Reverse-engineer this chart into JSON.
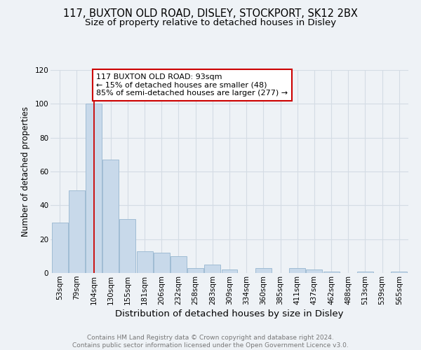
{
  "title": "117, BUXTON OLD ROAD, DISLEY, STOCKPORT, SK12 2BX",
  "subtitle": "Size of property relative to detached houses in Disley",
  "xlabel": "Distribution of detached houses by size in Disley",
  "ylabel_clean": "Number of detached properties",
  "categories": [
    "53sqm",
    "79sqm",
    "104sqm",
    "130sqm",
    "155sqm",
    "181sqm",
    "206sqm",
    "232sqm",
    "258sqm",
    "283sqm",
    "309sqm",
    "334sqm",
    "360sqm",
    "385sqm",
    "411sqm",
    "437sqm",
    "462sqm",
    "488sqm",
    "513sqm",
    "539sqm",
    "565sqm"
  ],
  "values": [
    30,
    49,
    100,
    67,
    32,
    13,
    12,
    10,
    3,
    5,
    2,
    0,
    3,
    0,
    3,
    2,
    1,
    0,
    1,
    0,
    1
  ],
  "bar_color": "#c8d9ea",
  "bar_edge_color": "#a0bcd4",
  "vline_x": 2,
  "vline_color": "#cc0000",
  "annotation_text": "117 BUXTON OLD ROAD: 93sqm\n← 15% of detached houses are smaller (48)\n85% of semi-detached houses are larger (277) →",
  "annotation_box_color": "#ffffff",
  "annotation_box_edge_color": "#cc0000",
  "ylim": [
    0,
    120
  ],
  "yticks": [
    0,
    20,
    40,
    60,
    80,
    100,
    120
  ],
  "grid_color": "#d4dce4",
  "background_color": "#eef2f6",
  "footer_text": "Contains HM Land Registry data © Crown copyright and database right 2024.\nContains public sector information licensed under the Open Government Licence v3.0.",
  "title_fontsize": 10.5,
  "subtitle_fontsize": 9.5,
  "xlabel_fontsize": 9.5,
  "ylabel_fontsize": 8.5,
  "tick_fontsize": 7.5,
  "annotation_fontsize": 8,
  "footer_fontsize": 6.5
}
